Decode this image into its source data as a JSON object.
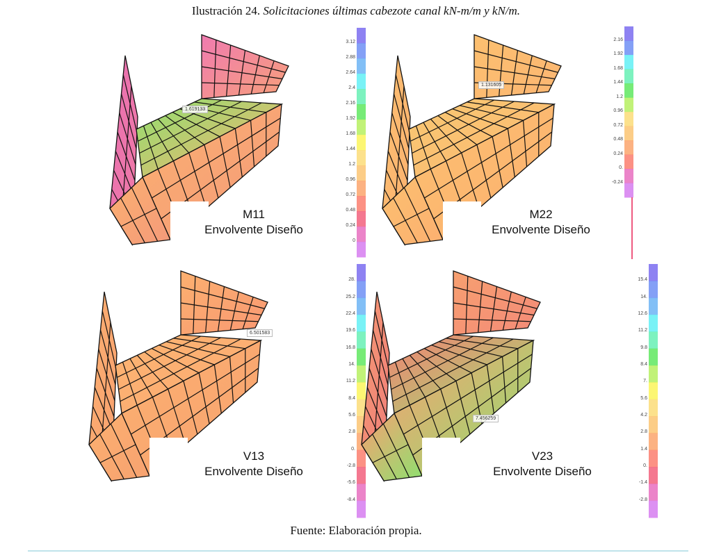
{
  "title": {
    "number": "Ilustración 24.",
    "caption": "Solicitaciones últimas cabezote canal kN-m/m y kN/m."
  },
  "footer": "Fuente: Elaboración propia.",
  "colors": {
    "legend": [
      "#7a6cf0",
      "#6f8ff5",
      "#6cb4f5",
      "#62f0f5",
      "#66f0b4",
      "#5fe85f",
      "#b6f060",
      "#fbf55a",
      "#fcdc78",
      "#fcc472",
      "#fca46c",
      "#fb7e6e",
      "#f2607c",
      "#e86fc0",
      "#d67cf0"
    ]
  },
  "panels": [
    {
      "label": "M11",
      "subtitle": "Envolvente Diseño",
      "callout": "1.619133",
      "ticks": [
        "3.12",
        "2.88",
        "2.64",
        "2.4",
        "2.16",
        "1.92",
        "1.68",
        "1.44",
        "1.2",
        "0.96",
        "0.72",
        "0.48",
        "0.24",
        "0"
      ]
    },
    {
      "label": "M22",
      "subtitle": "Envolvente Diseño",
      "callout": "1.131605",
      "ticks": [
        "2.16",
        "1.92",
        "1.68",
        "1.44",
        "1.2",
        "0.96",
        "0.72",
        "0.48",
        "0.24",
        "0.",
        "-0.24"
      ]
    },
    {
      "label": "V13",
      "subtitle": "Envolvente Diseño",
      "callout": "6.501583",
      "ticks": [
        "28.",
        "25.2",
        "22.4",
        "19.6",
        "16.8",
        "14.",
        "11.2",
        "8.4",
        "5.6",
        "2.8",
        "0.",
        "-2.8",
        "-5.6",
        "-8.4"
      ]
    },
    {
      "label": "V23",
      "subtitle": "Envolvente Diseño",
      "callout": "7.456259",
      "ticks": [
        "15.4",
        "14.",
        "12.6",
        "11.2",
        "9.8",
        "8.4",
        "7.",
        "5.6",
        "4.2",
        "2.8",
        "1.4",
        "0.",
        "-1.4",
        "-2.8"
      ]
    }
  ]
}
